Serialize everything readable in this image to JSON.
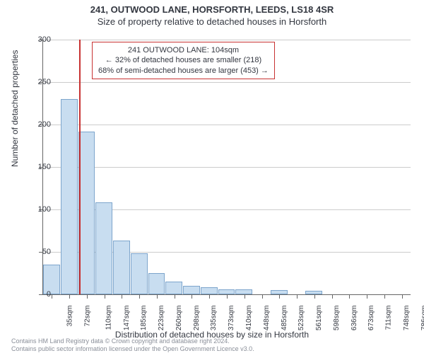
{
  "title_main": "241, OUTWOOD LANE, HORSFORTH, LEEDS, LS18 4SR",
  "title_sub": "Size of property relative to detached houses in Horsforth",
  "chart": {
    "type": "histogram",
    "ylabel": "Number of detached properties",
    "xlabel": "Distribution of detached houses by size in Horsforth",
    "ylim": [
      0,
      300
    ],
    "ytick_step": 50,
    "background_color": "#ffffff",
    "grid_color": "#cccccc",
    "axis_color": "#666666",
    "bar_fill": "#c8ddf0",
    "bar_border": "#7da5cc",
    "marker_color": "#c83232",
    "marker_x_category_index": 2,
    "categories": [
      "35sqm",
      "72sqm",
      "110sqm",
      "147sqm",
      "185sqm",
      "223sqm",
      "260sqm",
      "298sqm",
      "335sqm",
      "373sqm",
      "410sqm",
      "448sqm",
      "485sqm",
      "523sqm",
      "561sqm",
      "598sqm",
      "636sqm",
      "673sqm",
      "711sqm",
      "748sqm",
      "786sqm"
    ],
    "values": [
      35,
      230,
      192,
      108,
      63,
      48,
      25,
      15,
      10,
      8,
      6,
      6,
      0,
      5,
      0,
      4,
      0,
      0,
      0,
      0,
      0
    ],
    "annotation": {
      "line1": "241 OUTWOOD LANE: 104sqm",
      "line2": "← 32% of detached houses are smaller (218)",
      "line3": "68% of semi-detached houses are larger (453) →"
    }
  },
  "attribution": {
    "line1": "Contains HM Land Registry data © Crown copyright and database right 2024.",
    "line2": "Contains public sector information licensed under the Open Government Licence v3.0."
  },
  "layout": {
    "label_fontsize": 12,
    "tick_fontsize": 11,
    "title_fontsize": 13
  }
}
